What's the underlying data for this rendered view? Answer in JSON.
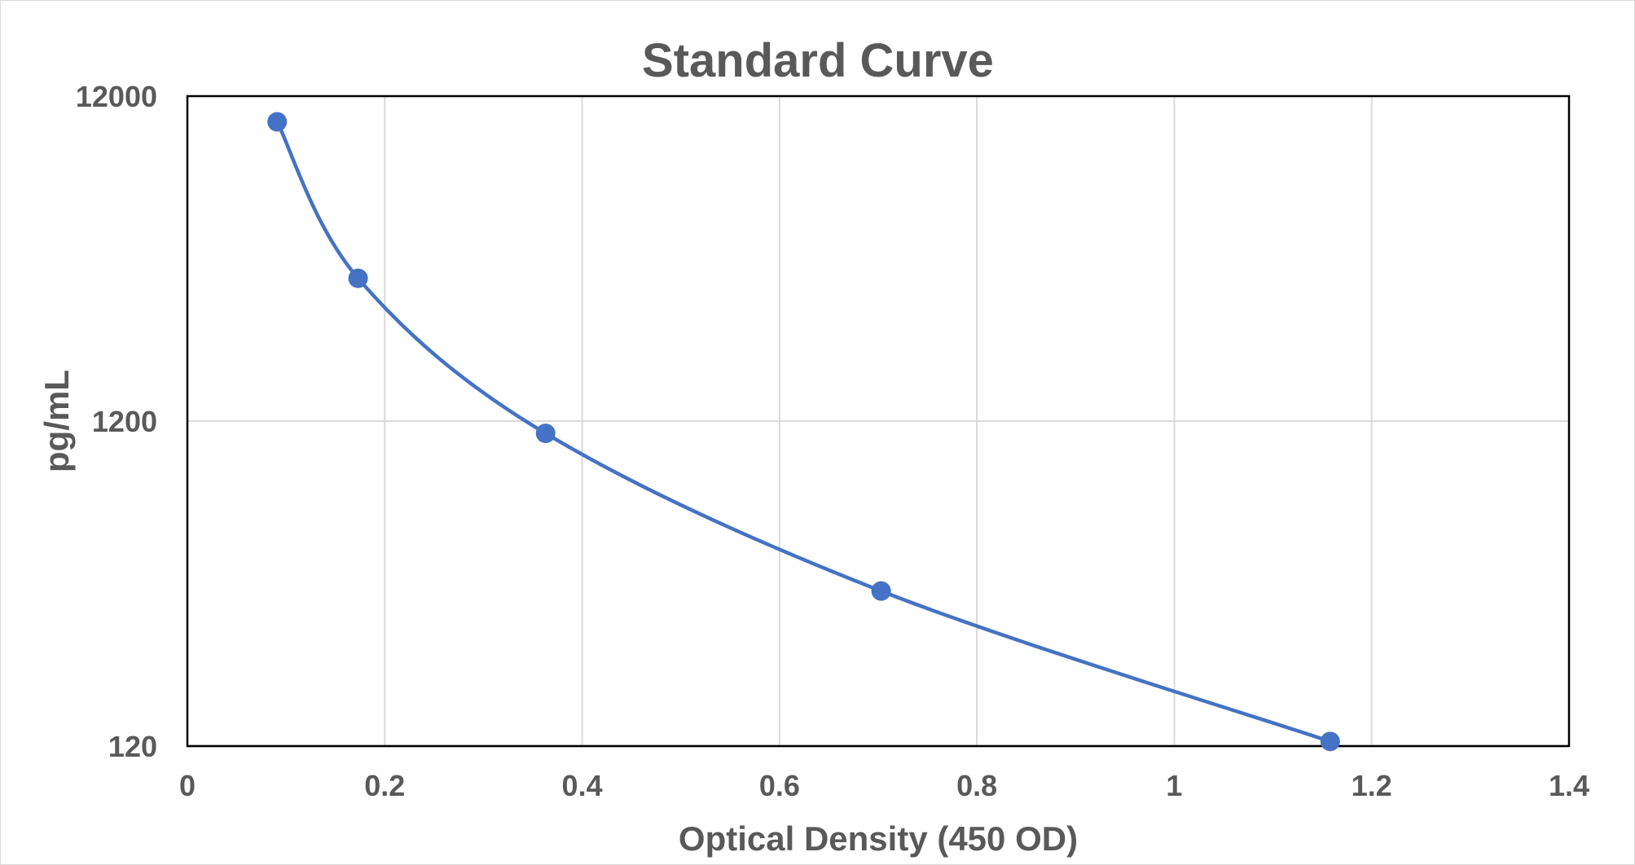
{
  "chart_data": {
    "type": "scatter",
    "title": "Standard Curve",
    "xlabel": "Optical Density (450 OD)",
    "ylabel": "pg/mL",
    "xlim": [
      0,
      1.4
    ],
    "ylim": [
      120,
      12000
    ],
    "y_scale": "log",
    "x_ticks": [
      0,
      0.2,
      0.4,
      0.6,
      0.8,
      1,
      1.2,
      1.4
    ],
    "x_tick_labels": [
      "0",
      "0.2",
      "0.4",
      "0.6",
      "0.8",
      "1",
      "1.2",
      "1.4"
    ],
    "y_ticks": [
      120,
      1200,
      12000
    ],
    "y_tick_labels": [
      "120",
      "1200",
      "12000"
    ],
    "grid": true,
    "smooth_line": true,
    "markers": true,
    "series": [
      {
        "color": "#4472c4",
        "x": [
          0.091,
          0.173,
          0.363,
          0.703,
          1.158
        ],
        "y": [
          10000,
          3300,
          1100,
          360,
          124
        ]
      }
    ]
  }
}
